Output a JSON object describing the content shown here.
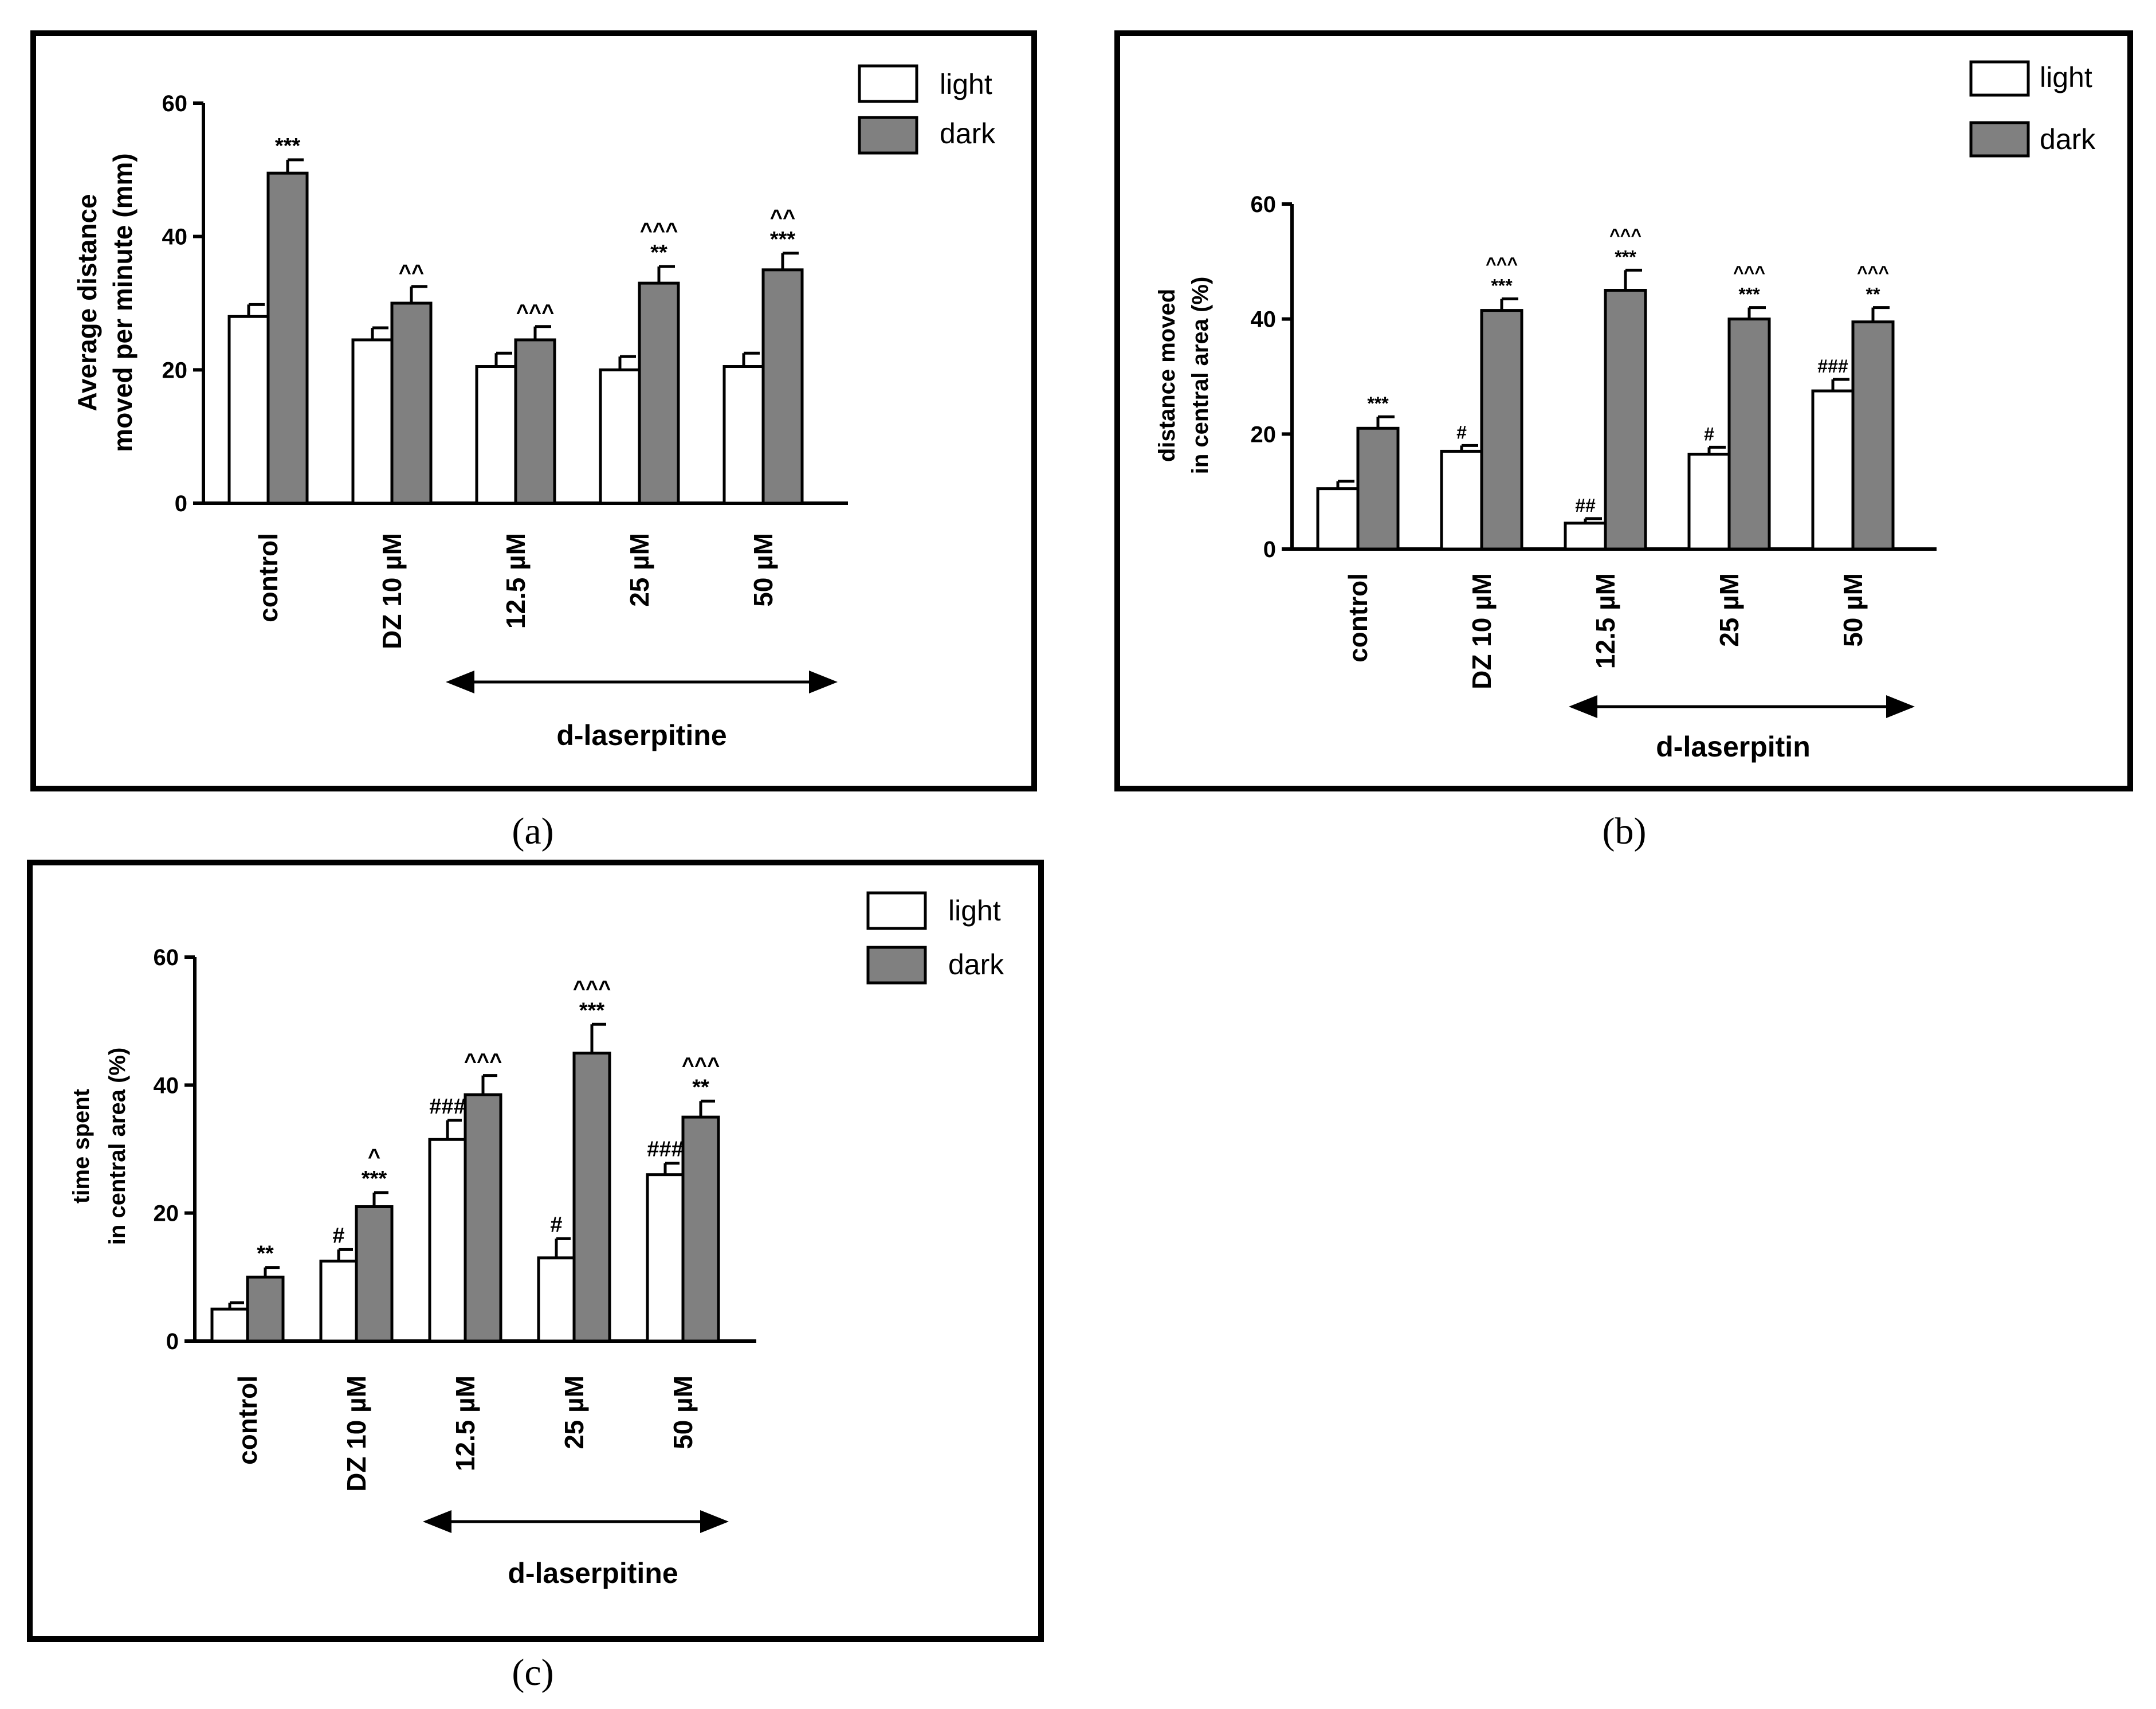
{
  "legend": {
    "light": "light",
    "dark": "dark"
  },
  "colors": {
    "light": "#ffffff",
    "dark": "#808080",
    "frame": "#000000"
  },
  "chart_data": [
    {
      "panel": "(a)",
      "type": "bar",
      "ylabel": [
        "Average distance",
        "moved per minute (mm)"
      ],
      "ylim": [
        0,
        60
      ],
      "yticks": [
        "0",
        "20",
        "40",
        "60"
      ],
      "categories": [
        "control",
        "DZ 10 µM",
        "12.5 µM",
        "25 µM",
        "50 µM"
      ],
      "series": [
        {
          "name": "light",
          "values": [
            28,
            24.5,
            20.5,
            20,
            20.5
          ],
          "errors": [
            1.8,
            1.8,
            2,
            2,
            2
          ]
        },
        {
          "name": "dark",
          "values": [
            49.5,
            30,
            24.5,
            33,
            35
          ],
          "errors": [
            2,
            2.5,
            2,
            2.5,
            2.5
          ]
        }
      ],
      "annotations": [
        [
          "",
          "***"
        ],
        [
          "",
          "^^"
        ],
        [
          "",
          "^^^"
        ],
        [
          "",
          "^^^|**"
        ],
        [
          "",
          "^^|***"
        ]
      ],
      "drug_label": "d-laserpitine"
    },
    {
      "panel": "(b)",
      "type": "bar",
      "ylabel": [
        "distance moved",
        "in central area (%)"
      ],
      "ylim": [
        0,
        60
      ],
      "yticks": [
        "0",
        "20",
        "40",
        "60"
      ],
      "categories": [
        "control",
        "DZ 10 µM",
        "12.5 µM",
        "25 µM",
        "50 µM"
      ],
      "series": [
        {
          "name": "light",
          "values": [
            10.5,
            17,
            4.5,
            16.5,
            27.5
          ],
          "errors": [
            1.3,
            1,
            0.8,
            1.2,
            2
          ]
        },
        {
          "name": "dark",
          "values": [
            21,
            41.5,
            45,
            40,
            39.5
          ],
          "errors": [
            2,
            2,
            3.5,
            2,
            2.5
          ]
        }
      ],
      "annotations": [
        [
          "",
          "***"
        ],
        [
          "#",
          "^^^|***"
        ],
        [
          "##",
          "^^^|***"
        ],
        [
          "#",
          "^^^|***"
        ],
        [
          "###",
          "^^^|**"
        ]
      ],
      "drug_label": "d-laserpitin"
    },
    {
      "panel": "(c)",
      "type": "bar",
      "ylabel": [
        "time spent",
        "in central area (%)"
      ],
      "ylim": [
        0,
        60
      ],
      "yticks": [
        "0",
        "20",
        "40",
        "60"
      ],
      "categories": [
        "control",
        "DZ 10 µM",
        "12.5 µM",
        "25 µM",
        "50 µM"
      ],
      "series": [
        {
          "name": "light",
          "values": [
            5,
            12.5,
            31.5,
            13,
            26
          ],
          "errors": [
            1,
            1.8,
            3,
            3,
            1.8
          ]
        },
        {
          "name": "dark",
          "values": [
            10,
            21,
            38.5,
            45,
            35
          ],
          "errors": [
            1.5,
            2.2,
            3,
            4.5,
            2.5
          ]
        }
      ],
      "annotations": [
        [
          "",
          "**"
        ],
        [
          "#",
          "^|***"
        ],
        [
          "###",
          "^^^"
        ],
        [
          "#",
          "^^^|***"
        ],
        [
          "###",
          "^^^|**"
        ]
      ],
      "drug_label": "d-laserpitine"
    }
  ]
}
